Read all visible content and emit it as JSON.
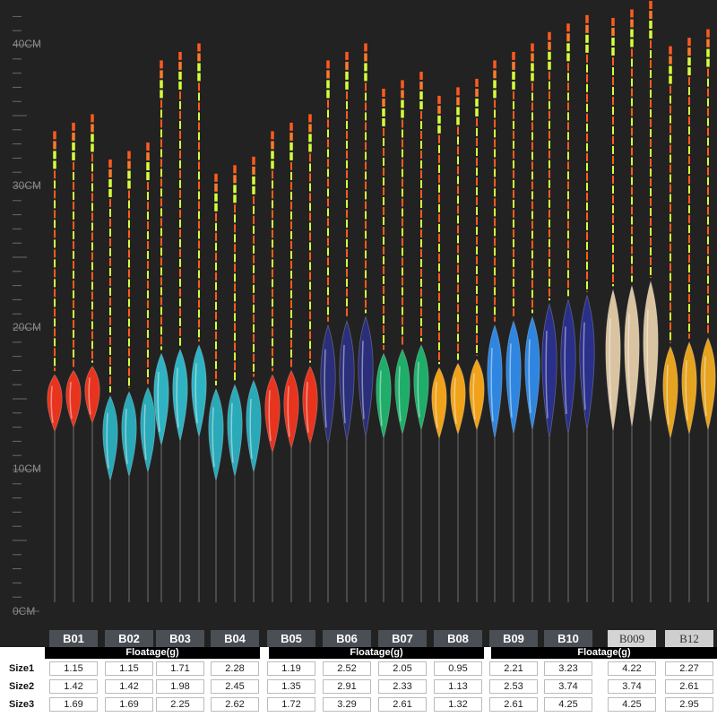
{
  "ruler": {
    "labels": [
      "40CM",
      "30CM",
      "20CM",
      "10CM",
      "0CM"
    ]
  },
  "colors": {
    "background": "#222222",
    "tip_orange": "#ff5a1e",
    "tip_yellow": "#d8ff3a",
    "stem": "#3a3a3a"
  },
  "models": [
    {
      "code": "B01",
      "body_color": "#e8341f",
      "tip_cm": 34.5,
      "body_top_cm": 17,
      "body_bottom_cm": 13
    },
    {
      "code": "B02",
      "body_color": "#2aa9b8",
      "tip_cm": 32.5,
      "body_top_cm": 15.5,
      "body_bottom_cm": 9.5
    },
    {
      "code": "B03",
      "body_color": "#2fb3c2",
      "tip_cm": 39.5,
      "body_top_cm": 18.5,
      "body_bottom_cm": 12
    },
    {
      "code": "B04",
      "body_color": "#2aa9b8",
      "tip_cm": 31.5,
      "body_top_cm": 16,
      "body_bottom_cm": 9.5
    },
    {
      "code": "B05",
      "body_color": "#e8341f",
      "tip_cm": 34.5,
      "body_top_cm": 17,
      "body_bottom_cm": 11.5
    },
    {
      "code": "B06",
      "body_color": "#2b2f7a",
      "tip_cm": 39.5,
      "body_top_cm": 20.5,
      "body_bottom_cm": 12
    },
    {
      "code": "B07",
      "body_color": "#1fae6a",
      "tip_cm": 37.5,
      "body_top_cm": 18.5,
      "body_bottom_cm": 12.5
    },
    {
      "code": "B08",
      "body_color": "#f0a21a",
      "tip_cm": 37,
      "body_top_cm": 17.5,
      "body_bottom_cm": 12.5
    },
    {
      "code": "B09",
      "body_color": "#2f86e0",
      "tip_cm": 39.5,
      "body_top_cm": 20.5,
      "body_bottom_cm": 12.5
    },
    {
      "code": "B10",
      "body_color": "#2a2f8a",
      "tip_cm": 41.5,
      "body_top_cm": 22,
      "body_bottom_cm": 12.5
    },
    {
      "code": "B009",
      "body_color": "#d9c3a0",
      "tip_cm": 42.5,
      "body_top_cm": 23,
      "body_bottom_cm": 13,
      "light": true
    },
    {
      "code": "B12",
      "body_color": "#e6a320",
      "tip_cm": 40.5,
      "body_top_cm": 19,
      "body_bottom_cm": 12.5,
      "light": true
    }
  ],
  "table": {
    "header_label": "Floatage(g)",
    "rows": [
      {
        "label": "Size1",
        "values": [
          "1.15",
          "1.15",
          "1.71",
          "2.28",
          "1.19",
          "2.52",
          "2.05",
          "0.95",
          "2.21",
          "3.23",
          "4.22",
          "2.27"
        ]
      },
      {
        "label": "Size2",
        "values": [
          "1.42",
          "1.42",
          "1.98",
          "2.45",
          "1.35",
          "2.91",
          "2.33",
          "1.13",
          "2.53",
          "3.74",
          "3.74",
          "2.61"
        ]
      },
      {
        "label": "Size3",
        "values": [
          "1.69",
          "1.69",
          "2.25",
          "2.62",
          "1.72",
          "3.29",
          "2.61",
          "1.32",
          "2.61",
          "4.25",
          "4.25",
          "2.95"
        ]
      }
    ]
  }
}
